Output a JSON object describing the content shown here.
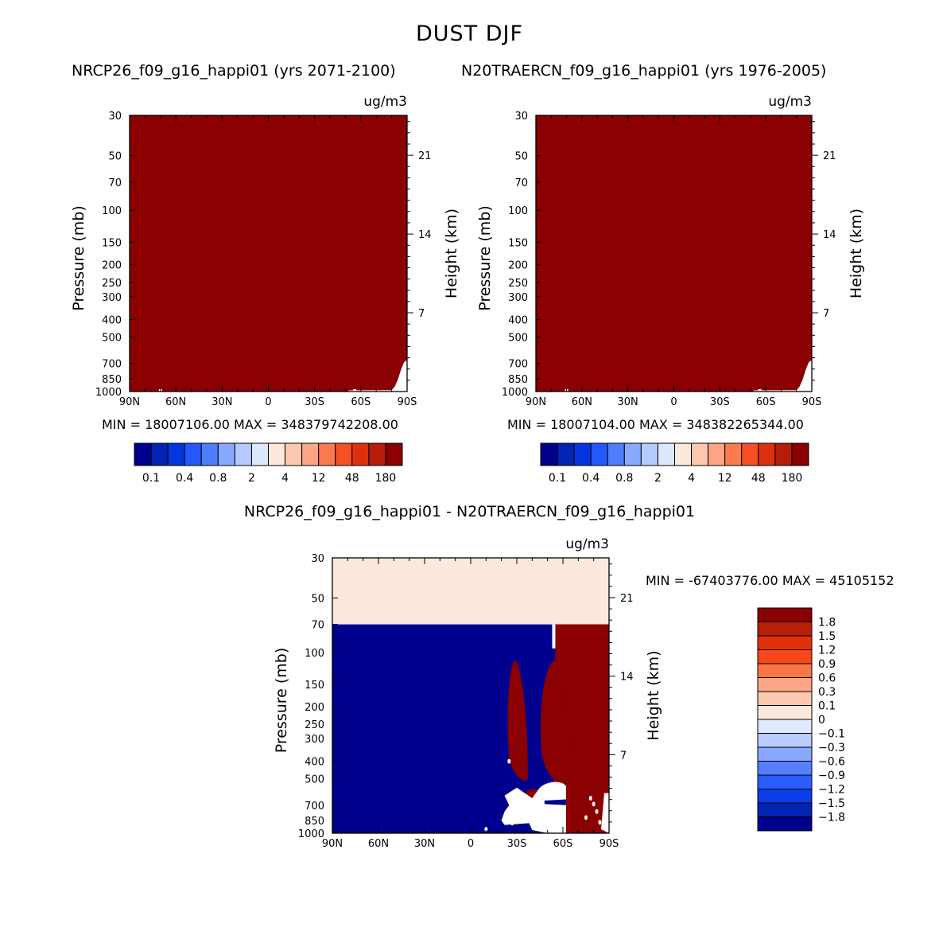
{
  "title": "DUST DJF",
  "chart_data": [
    {
      "type": "heatmap",
      "title": "NRCP26_f09_g16_happi01 (yrs 2071-2100)",
      "units": "ug/m3",
      "ylabel": "Pressure (mb)",
      "ylabel_right": "Height (km)",
      "x_ticks": [
        "90N",
        "60N",
        "30N",
        "0",
        "30S",
        "60S",
        "90S"
      ],
      "x_range": [
        90,
        -90
      ],
      "y_ticks": [
        30,
        50,
        70,
        100,
        150,
        200,
        250,
        300,
        400,
        500,
        700,
        850,
        1000
      ],
      "y_range": [
        30,
        1000
      ],
      "y_scale": "log",
      "height_ticks": [
        21,
        14,
        7
      ],
      "stats": "MIN = 18007106.00   MAX = 348379742208.00",
      "colorbar_labels": [
        "0.1",
        "0.4",
        "0.8",
        "2",
        "4",
        "12",
        "48",
        "180"
      ],
      "dominant_level": "180",
      "field_summary": "nearly the whole field exceeds the top contour level; small low-value corner near 60S-90S close to the surface"
    },
    {
      "type": "heatmap",
      "title": "N20TRAERCN_f09_g16_happi01 (yrs 1976-2005)",
      "units": "ug/m3",
      "ylabel": "Pressure (mb)",
      "ylabel_right": "Height (km)",
      "x_ticks": [
        "90N",
        "60N",
        "30N",
        "0",
        "30S",
        "60S",
        "90S"
      ],
      "x_range": [
        90,
        -90
      ],
      "y_ticks": [
        30,
        50,
        70,
        100,
        150,
        200,
        250,
        300,
        400,
        500,
        700,
        850,
        1000
      ],
      "y_range": [
        30,
        1000
      ],
      "y_scale": "log",
      "height_ticks": [
        21,
        14,
        7
      ],
      "stats": "MIN = 18007104.00   MAX = 348382265344.00",
      "colorbar_labels": [
        "0.1",
        "0.4",
        "0.8",
        "2",
        "4",
        "12",
        "48",
        "180"
      ],
      "dominant_level": "180"
    },
    {
      "type": "heatmap",
      "title": "NRCP26_f09_g16_happi01 - N20TRAERCN_f09_g16_happi01",
      "units": "ug/m3",
      "ylabel": "Pressure (mb)",
      "ylabel_right": "Height (km)",
      "x_ticks": [
        "90N",
        "60N",
        "30N",
        "0",
        "30S",
        "60S",
        "90S"
      ],
      "x_range": [
        90,
        -90
      ],
      "y_ticks": [
        30,
        50,
        70,
        100,
        150,
        200,
        250,
        300,
        400,
        500,
        700,
        850,
        1000
      ],
      "y_range": [
        30,
        1000
      ],
      "y_scale": "log",
      "height_ticks": [
        21,
        14,
        7
      ],
      "stats": "MIN = -67403776.00   MAX = 45105152",
      "colorbar_labels": [
        "1.8",
        "1.5",
        "1.2",
        "0.9",
        "0.6",
        "0.3",
        "0.1",
        "0",
        "-0.1",
        "-0.3",
        "-0.6",
        "-0.9",
        "-1.2",
        "-1.5",
        "-1.8"
      ],
      "regions": [
        {
          "value_range": "0 to 0.1",
          "pressure": [
            30,
            70
          ],
          "lat": [
            90,
            -90
          ]
        },
        {
          "value_range": "< -1.8",
          "pressure": [
            70,
            1000
          ],
          "lat": [
            90,
            -55
          ]
        },
        {
          "value_range": "> 1.8",
          "pressure": [
            70,
            1000
          ],
          "lat": [
            -55,
            -90
          ]
        },
        {
          "value_range": "> 1.8",
          "pressure": [
            110,
            520
          ],
          "lat": [
            -50,
            -60
          ]
        },
        {
          "value_range": "> 1.8",
          "pressure": [
            110,
            520
          ],
          "lat": [
            -26,
            -33
          ]
        }
      ]
    }
  ],
  "colorbar_colors_main": [
    "#00008f",
    "#0224b3",
    "#0436e0",
    "#2357ff",
    "#4f7dff",
    "#88a9ff",
    "#b5cbff",
    "#dde8ff",
    "#fde8dc",
    "#fdc8b0",
    "#fca584",
    "#fb7b51",
    "#f64f27",
    "#df300c",
    "#b51d08",
    "#8b0000"
  ],
  "colorbar_colors_diff": [
    "#8b0000",
    "#b71f08",
    "#e2300c",
    "#f8461d",
    "#fb7546",
    "#fca584",
    "#fdc8b0",
    "#fde9dc",
    "#dfe9ff",
    "#b8cdff",
    "#88a9ff",
    "#5580ff",
    "#2a5dff",
    "#0a3ee8",
    "#0224b3",
    "#00008f"
  ]
}
